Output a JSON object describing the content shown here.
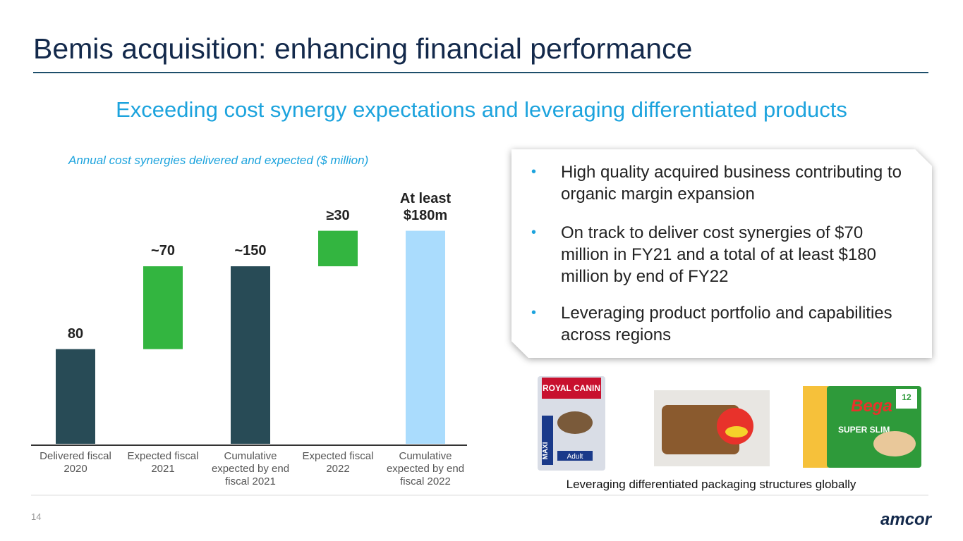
{
  "slide": {
    "title": "Bemis acquisition: enhancing financial performance",
    "subtitle": "Exceeding cost synergy expectations and leveraging differentiated products",
    "bullets": [
      "High quality acquired business contributing to organic margin expansion",
      "On track to deliver cost synergies of $70 million in FY21 and a total of at least $180 million by end of FY22",
      "Leveraging product portfolio and capabilities across regions"
    ],
    "bullet_marker": "•",
    "images": {
      "pack_1": [
        "ROYAL CANIN",
        "Adult",
        "MAXI"
      ],
      "pack_3": [
        "Bega",
        "SUPER SLIM",
        "12"
      ]
    },
    "caption": "Leveraging differentiated packaging structures globally",
    "page_number": "14",
    "logo": "amcor"
  },
  "chart_data": {
    "type": "waterfall",
    "title": "Annual cost synergies delivered and expected ($ million)",
    "categories": [
      "Delivered fiscal 2020",
      "Expected fiscal 2021",
      "Cumulative expected by end fiscal 2021",
      "Expected fiscal 2022",
      "Cumulative expected by end fiscal 2022"
    ],
    "values": [
      80,
      70,
      150,
      30,
      180
    ],
    "value_labels": [
      "80",
      "~70",
      "~150",
      "≥30",
      "At least $180m"
    ],
    "measure": [
      "absolute",
      "relative",
      "absolute",
      "relative",
      "absolute"
    ],
    "colors": [
      "#284b56",
      "#33b540",
      "#284b56",
      "#33b540",
      "#aadcfd"
    ]
  }
}
